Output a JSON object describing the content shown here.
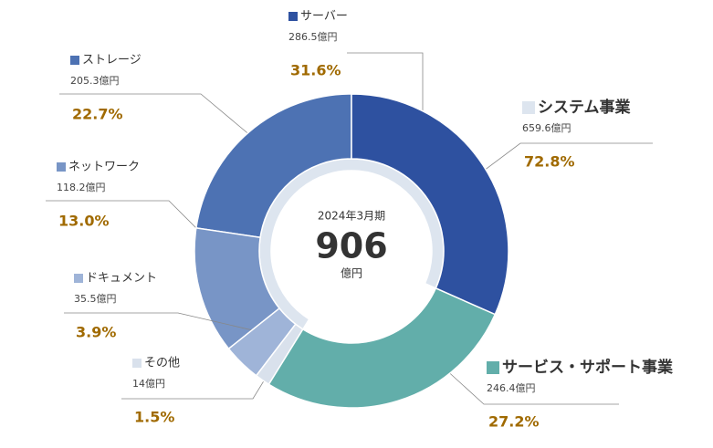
{
  "chart_data": {
    "type": "donut",
    "center": {
      "label": "2024年3月期",
      "value": 906,
      "unit": "億円"
    },
    "segments": [
      {
        "name": "サーバー",
        "value": 286.5,
        "value_label": "286.5億円",
        "percent": 31.6,
        "percent_label": "31.6%",
        "color": "#2e51a0"
      },
      {
        "name": "サービス・サポート事業",
        "value": 246.4,
        "value_label": "246.4億円",
        "percent": 27.2,
        "percent_label": "27.2%",
        "color": "#62aeaa"
      },
      {
        "name": "その他",
        "value": 14,
        "value_label": "14億円",
        "percent": 1.5,
        "percent_label": "1.5%",
        "color": "#d9e1ec"
      },
      {
        "name": "ドキュメント",
        "value": 35.5,
        "value_label": "35.5億円",
        "percent": 3.9,
        "percent_label": "3.9%",
        "color": "#9fb4d8"
      },
      {
        "name": "ネットワーク",
        "value": 118.2,
        "value_label": "118.2億円",
        "percent": 13.0,
        "percent_label": "13.0%",
        "color": "#7895c6"
      },
      {
        "name": "ストレージ",
        "value": 205.3,
        "value_label": "205.3億円",
        "percent": 22.7,
        "percent_label": "22.7%",
        "color": "#4d72b3"
      }
    ],
    "inner": {
      "name": "システム事業",
      "value": 659.6,
      "value_label": "659.6億円",
      "percent": 72.8,
      "percent_label": "72.8%",
      "color": "#dde5ef"
    }
  }
}
